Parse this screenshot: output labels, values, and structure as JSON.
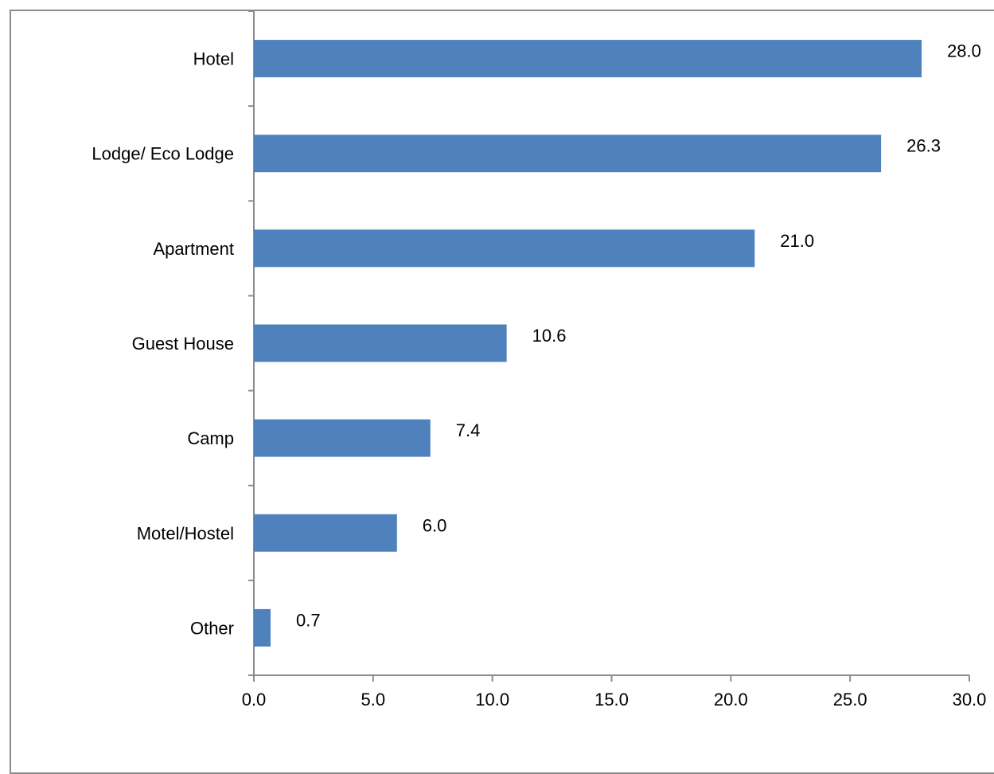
{
  "chart_data": {
    "type": "bar",
    "orientation": "horizontal",
    "categories": [
      "Hotel",
      "Lodge/ Eco Lodge",
      "Apartment",
      "Guest House",
      "Camp",
      "Motel/Hostel",
      "Other"
    ],
    "values": [
      28.0,
      26.3,
      21.0,
      10.6,
      7.4,
      6.0,
      0.7
    ],
    "value_labels": [
      "28.0",
      "26.3",
      "21.0",
      "10.6",
      "7.4",
      "6.0",
      "0.7"
    ],
    "x_ticks": [
      "0.0",
      "5.0",
      "10.0",
      "15.0",
      "20.0",
      "25.0",
      "30.0"
    ],
    "xlim": [
      0,
      30
    ],
    "title": "",
    "xlabel": "",
    "ylabel": "",
    "grid": false,
    "legend": "none",
    "bar_color": "#4f81bd"
  }
}
